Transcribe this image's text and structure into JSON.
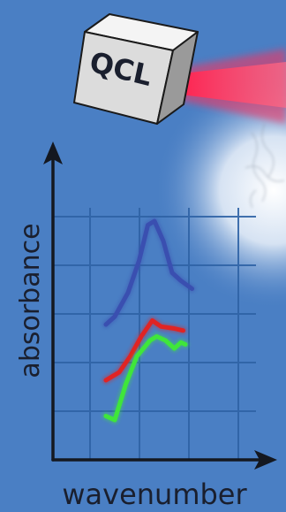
{
  "device": {
    "label": "QCL"
  },
  "axes": {
    "ylabel": "absorbance",
    "xlabel": "wavenumber"
  },
  "chart_data": {
    "type": "line",
    "xlabel": "wavenumber",
    "ylabel": "absorbance",
    "grid": true,
    "series": [
      {
        "color": "#3a4fb0",
        "points": [
          [
            1.2,
            3.4
          ],
          [
            1.4,
            3.6
          ],
          [
            1.7,
            4.2
          ],
          [
            1.95,
            5.0
          ],
          [
            2.15,
            5.9
          ],
          [
            2.3,
            6.0
          ],
          [
            2.5,
            5.5
          ],
          [
            2.7,
            4.7
          ],
          [
            2.9,
            4.5
          ],
          [
            3.15,
            4.3
          ]
        ]
      },
      {
        "color": "#e02424",
        "points": [
          [
            1.2,
            2.0
          ],
          [
            1.5,
            2.2
          ],
          [
            1.75,
            2.6
          ],
          [
            2.0,
            3.1
          ],
          [
            2.25,
            3.5
          ],
          [
            2.45,
            3.35
          ],
          [
            2.75,
            3.3
          ],
          [
            2.95,
            3.25
          ]
        ]
      },
      {
        "color": "#3fe63a",
        "points": [
          [
            1.2,
            1.1
          ],
          [
            1.4,
            1.0
          ],
          [
            1.65,
            1.9
          ],
          [
            1.9,
            2.6
          ],
          [
            2.2,
            3.0
          ],
          [
            2.35,
            3.1
          ],
          [
            2.55,
            3.0
          ],
          [
            2.75,
            2.8
          ],
          [
            2.9,
            2.95
          ],
          [
            3.0,
            2.9
          ]
        ]
      }
    ]
  },
  "colors": {
    "background": "#4a7fc4",
    "beam": "#ff2e5a",
    "grid": "#2f63a6",
    "axis": "#141820"
  }
}
